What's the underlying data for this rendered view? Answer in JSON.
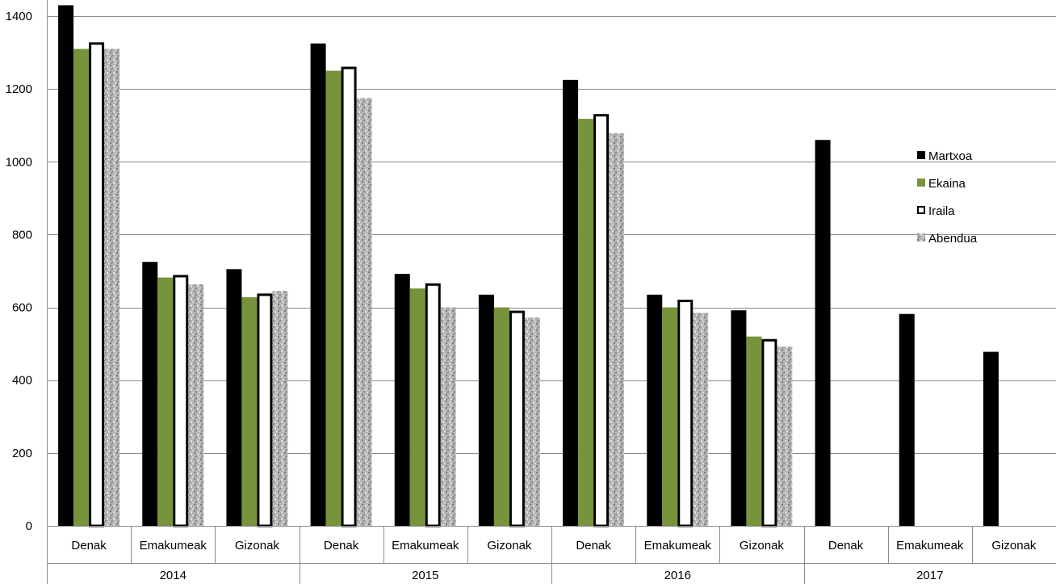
{
  "chart_data": {
    "type": "bar",
    "title": "",
    "xlabel": "",
    "ylabel": "",
    "ylim": [
      0,
      1400
    ],
    "yticks": [
      0,
      200,
      400,
      600,
      800,
      1000,
      1200,
      1400
    ],
    "grid": true,
    "legend_position": "right",
    "groups": [
      {
        "label": "2014",
        "categories": [
          "Denak",
          "Emakumeak",
          "Gizonak"
        ]
      },
      {
        "label": "2015",
        "categories": [
          "Denak",
          "Emakumeak",
          "Gizonak"
        ]
      },
      {
        "label": "2016",
        "categories": [
          "Denak",
          "Emakumeak",
          "Gizonak"
        ]
      },
      {
        "label": "2017",
        "categories": [
          "Denak",
          "Emakumeak",
          "Gizonak"
        ]
      }
    ],
    "series": [
      {
        "name": "Martxoa",
        "color": "#000000",
        "values": [
          1430,
          725,
          705,
          1325,
          692,
          635,
          1225,
          635,
          592,
          1060,
          582,
          478
        ]
      },
      {
        "name": "Ekaina",
        "color": "#77933c",
        "values": [
          1310,
          682,
          628,
          1250,
          652,
          600,
          1118,
          600,
          520,
          null,
          null,
          null
        ]
      },
      {
        "name": "Iraila",
        "color": "#ffffff",
        "values": [
          1327,
          688,
          637,
          1260,
          665,
          590,
          1130,
          620,
          512,
          null,
          null,
          null
        ]
      },
      {
        "name": "Abendua",
        "color": "#a6a6a6",
        "values": [
          1310,
          663,
          645,
          1175,
          600,
          572,
          1078,
          585,
          492,
          null,
          null,
          null
        ]
      }
    ]
  }
}
